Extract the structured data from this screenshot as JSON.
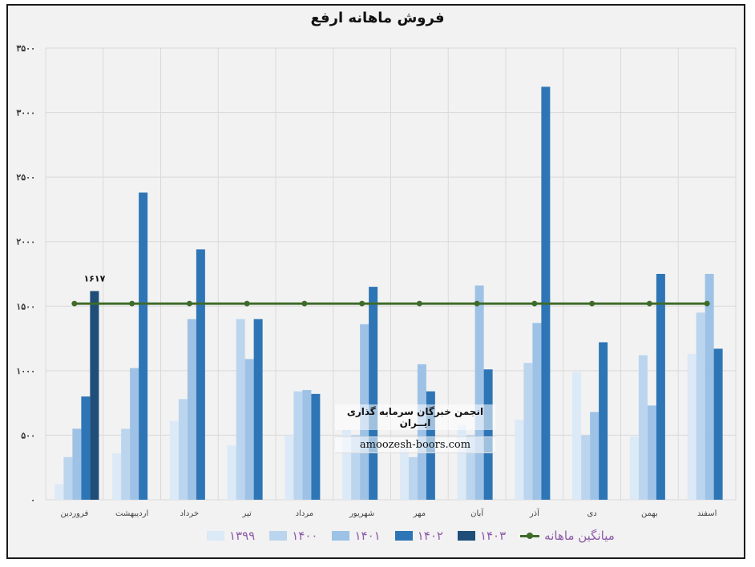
{
  "chart_data": {
    "type": "bar",
    "title": "فروش ماهانه ارفع",
    "xlabel": "",
    "ylabel": "",
    "ylim": [
      0,
      3500
    ],
    "yticks": [
      "۰",
      "۵۰۰",
      "۱۰۰۰",
      "۱۵۰۰",
      "۲۰۰۰",
      "۲۵۰۰",
      "۳۰۰۰",
      "۳۵۰۰"
    ],
    "ytick_values": [
      0,
      500,
      1000,
      1500,
      2000,
      2500,
      3000,
      3500
    ],
    "categories": [
      "فروردین",
      "اردیبهشت",
      "خرداد",
      "تیر",
      "مرداد",
      "شهریور",
      "مهر",
      "آبان",
      "آذر",
      "دی",
      "بهمن",
      "اسفند"
    ],
    "series": [
      {
        "name": "۱۳۹۹",
        "color": "#dce9f6",
        "values": [
          120,
          360,
          610,
          420,
          500,
          540,
          400,
          580,
          620,
          990,
          490,
          1130
        ]
      },
      {
        "name": "۱۴۰۰",
        "color": "#bcd5ee",
        "values": [
          330,
          550,
          780,
          1400,
          840,
          500,
          330,
          500,
          1060,
          500,
          1120,
          1450
        ]
      },
      {
        "name": "۱۴۰۱",
        "color": "#9dc2e6",
        "values": [
          550,
          1020,
          1400,
          1090,
          850,
          1360,
          1050,
          1660,
          1370,
          680,
          730,
          1750
        ]
      },
      {
        "name": "۱۴۰۲",
        "color": "#2e75b6",
        "values": [
          800,
          2380,
          1940,
          1400,
          820,
          1650,
          840,
          1010,
          3200,
          1220,
          1750,
          1170
        ]
      },
      {
        "name": "۱۴۰۳",
        "color": "#1f4e79",
        "values": [
          1617,
          null,
          null,
          null,
          null,
          null,
          null,
          null,
          null,
          null,
          null,
          null
        ]
      }
    ],
    "average": {
      "name": "میانگین ماهانه",
      "color": "#3e6b2a",
      "value": 1520
    },
    "data_labels": [
      {
        "category": "فروردین",
        "series": "۱۴۰۳",
        "text": "۱۶۱۷"
      }
    ],
    "grid": true,
    "legend_position": "bottom"
  },
  "watermark": {
    "title": "انجمن خبرگان سرمایه گذاری ایــران",
    "url": "amoozesh-boors.com"
  }
}
